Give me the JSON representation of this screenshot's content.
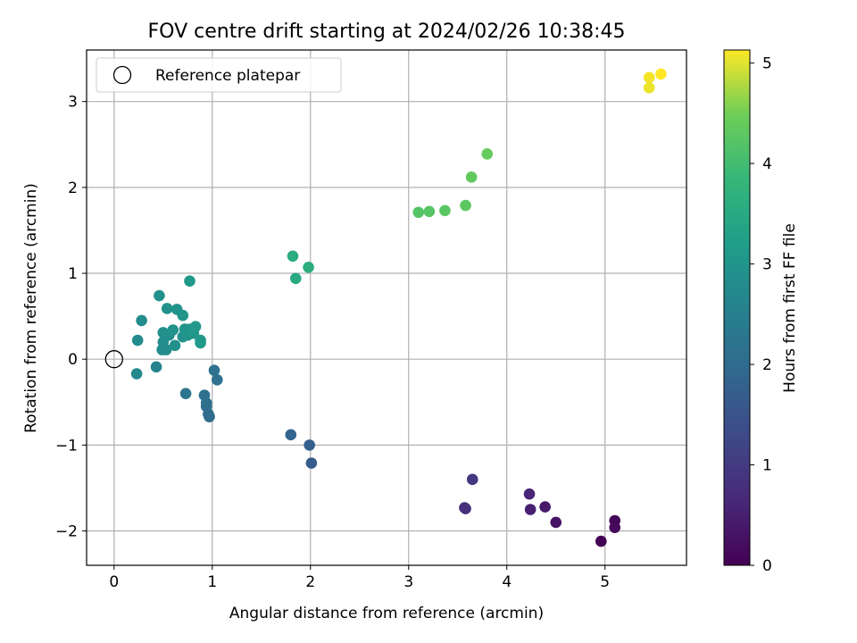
{
  "chart_data": {
    "type": "scatter",
    "title": "FOV centre drift starting at 2024/02/26 10:38:45",
    "xlabel": "Angular distance from reference (arcmin)",
    "ylabel": "Rotation from reference (arcmin)",
    "xlim": [
      -0.28,
      5.83
    ],
    "ylim": [
      -2.4,
      3.6
    ],
    "xticks": [
      0,
      1,
      2,
      3,
      4,
      5
    ],
    "yticks": [
      -2,
      -1,
      0,
      1,
      2,
      3
    ],
    "xtick_labels": [
      "0",
      "1",
      "2",
      "3",
      "4",
      "5"
    ],
    "ytick_labels": [
      "−2",
      "−1",
      "0",
      "1",
      "2",
      "3"
    ],
    "grid": true,
    "legend": {
      "position": "top-left",
      "entries": [
        "Reference platepar"
      ]
    },
    "reference_point": {
      "x": 0,
      "y": 0
    },
    "colorbar": {
      "label": "Hours from first FF file",
      "colormap": "viridis",
      "range": [
        0,
        5.13
      ],
      "ticks": [
        0,
        1,
        2,
        3,
        4,
        5
      ],
      "tick_labels": [
        "0",
        "1",
        "2",
        "3",
        "4",
        "5"
      ]
    },
    "points": [
      {
        "x": 4.96,
        "y": -2.12,
        "c": 0.0
      },
      {
        "x": 5.1,
        "y": -1.88,
        "c": 0.08
      },
      {
        "x": 5.1,
        "y": -1.96,
        "c": 0.15
      },
      {
        "x": 4.5,
        "y": -1.9,
        "c": 0.3
      },
      {
        "x": 4.39,
        "y": -1.72,
        "c": 0.4
      },
      {
        "x": 4.24,
        "y": -1.75,
        "c": 0.5
      },
      {
        "x": 4.23,
        "y": -1.57,
        "c": 0.6
      },
      {
        "x": 3.58,
        "y": -1.74,
        "c": 0.75
      },
      {
        "x": 3.57,
        "y": -1.73,
        "c": 0.8
      },
      {
        "x": 3.65,
        "y": -1.4,
        "c": 0.95
      },
      {
        "x": 2.01,
        "y": -1.21,
        "c": 1.65
      },
      {
        "x": 1.99,
        "y": -1.0,
        "c": 1.75
      },
      {
        "x": 1.8,
        "y": -0.88,
        "c": 1.85
      },
      {
        "x": 0.97,
        "y": -0.67,
        "c": 2.0
      },
      {
        "x": 0.96,
        "y": -0.64,
        "c": 2.03
      },
      {
        "x": 0.94,
        "y": -0.55,
        "c": 2.06
      },
      {
        "x": 0.94,
        "y": -0.51,
        "c": 2.09
      },
      {
        "x": 0.92,
        "y": -0.42,
        "c": 2.12
      },
      {
        "x": 1.05,
        "y": -0.24,
        "c": 2.15
      },
      {
        "x": 1.02,
        "y": -0.13,
        "c": 2.18
      },
      {
        "x": 0.73,
        "y": -0.4,
        "c": 2.25
      },
      {
        "x": 0.43,
        "y": -0.09,
        "c": 2.6
      },
      {
        "x": 0.23,
        "y": -0.17,
        "c": 2.7
      },
      {
        "x": 0.24,
        "y": 0.22,
        "c": 2.75
      },
      {
        "x": 0.28,
        "y": 0.45,
        "c": 2.8
      },
      {
        "x": 0.49,
        "y": 0.11,
        "c": 2.8
      },
      {
        "x": 0.53,
        "y": 0.11,
        "c": 2.82
      },
      {
        "x": 0.5,
        "y": 0.2,
        "c": 2.84
      },
      {
        "x": 0.5,
        "y": 0.31,
        "c": 2.86
      },
      {
        "x": 0.56,
        "y": 0.28,
        "c": 2.88
      },
      {
        "x": 0.62,
        "y": 0.16,
        "c": 2.9
      },
      {
        "x": 0.6,
        "y": 0.34,
        "c": 2.92
      },
      {
        "x": 0.7,
        "y": 0.26,
        "c": 2.94
      },
      {
        "x": 0.72,
        "y": 0.35,
        "c": 2.96
      },
      {
        "x": 0.75,
        "y": 0.28,
        "c": 2.98
      },
      {
        "x": 0.77,
        "y": 0.35,
        "c": 3.0
      },
      {
        "x": 0.79,
        "y": 0.33,
        "c": 3.02
      },
      {
        "x": 0.81,
        "y": 0.3,
        "c": 3.04
      },
      {
        "x": 0.83,
        "y": 0.38,
        "c": 3.06
      },
      {
        "x": 0.88,
        "y": 0.22,
        "c": 3.08
      },
      {
        "x": 0.88,
        "y": 0.19,
        "c": 3.1
      },
      {
        "x": 0.54,
        "y": 0.59,
        "c": 2.9
      },
      {
        "x": 0.64,
        "y": 0.58,
        "c": 2.95
      },
      {
        "x": 0.7,
        "y": 0.51,
        "c": 3.0
      },
      {
        "x": 0.46,
        "y": 0.74,
        "c": 2.9
      },
      {
        "x": 0.77,
        "y": 0.91,
        "c": 3.1
      },
      {
        "x": 1.85,
        "y": 0.94,
        "c": 3.5
      },
      {
        "x": 1.82,
        "y": 1.2,
        "c": 3.55
      },
      {
        "x": 1.98,
        "y": 1.07,
        "c": 3.6
      },
      {
        "x": 3.1,
        "y": 1.71,
        "c": 4.2
      },
      {
        "x": 3.21,
        "y": 1.72,
        "c": 4.23
      },
      {
        "x": 3.37,
        "y": 1.73,
        "c": 4.26
      },
      {
        "x": 3.58,
        "y": 1.79,
        "c": 4.3
      },
      {
        "x": 3.64,
        "y": 2.12,
        "c": 4.35
      },
      {
        "x": 3.8,
        "y": 2.39,
        "c": 4.4
      },
      {
        "x": 5.45,
        "y": 3.16,
        "c": 5.05
      },
      {
        "x": 5.45,
        "y": 3.28,
        "c": 5.08
      },
      {
        "x": 5.57,
        "y": 3.32,
        "c": 5.13
      }
    ]
  }
}
